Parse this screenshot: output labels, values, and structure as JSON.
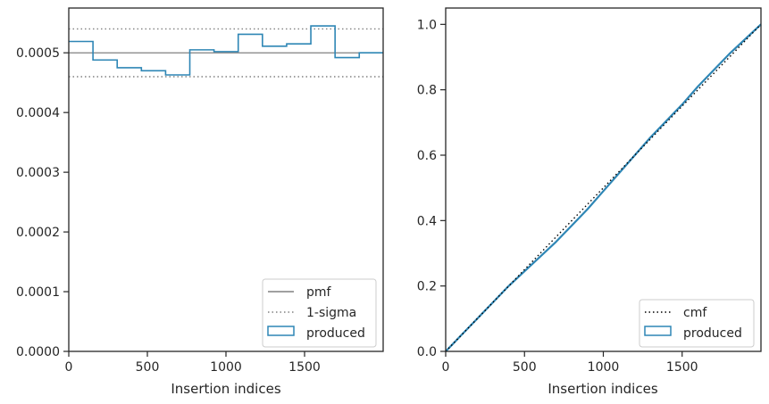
{
  "colors": {
    "produced": "#2e86b5",
    "pmf": "#808080",
    "sigma": "#808080",
    "cmf": "#000000",
    "frame": "#262626",
    "legend_border": "#cccccc"
  },
  "chart_data": [
    {
      "type": "histogram",
      "xlabel": "Insertion indices",
      "ylabel": "",
      "xlim": [
        0,
        2000
      ],
      "ylim": [
        0,
        0.000575
      ],
      "xticks": [
        0,
        500,
        1000,
        1500
      ],
      "xtick_labels": [
        "0",
        "500",
        "1000",
        "1500"
      ],
      "yticks": [
        0,
        0.0001,
        0.0002,
        0.0003,
        0.0004,
        0.0005
      ],
      "ytick_labels": [
        "0.0000",
        "0.0001",
        "0.0002",
        "0.0003",
        "0.0004",
        "0.0005"
      ],
      "pmf": 0.0005,
      "sigma": [
        0.00046,
        0.00054
      ],
      "bin_edges": [
        0,
        154,
        308,
        462,
        616,
        770,
        924,
        1078,
        1232,
        1386,
        1540,
        1694,
        1848,
        2000
      ],
      "values": [
        0.000519,
        0.000488,
        0.000475,
        0.00047,
        0.000463,
        0.000505,
        0.000502,
        0.000531,
        0.000511,
        0.000515,
        0.000545,
        0.000492,
        0.0005
      ],
      "legend": {
        "position": "lower-right",
        "entries": [
          {
            "label": "pmf",
            "style": "line"
          },
          {
            "label": "1-sigma",
            "style": "dotted"
          },
          {
            "label": "produced",
            "style": "patch"
          }
        ]
      }
    },
    {
      "type": "line",
      "xlabel": "Insertion indices",
      "ylabel": "",
      "xlim": [
        0,
        2000
      ],
      "ylim": [
        0,
        1.05
      ],
      "xticks": [
        0,
        500,
        1000,
        1500
      ],
      "xtick_labels": [
        "0",
        "500",
        "1000",
        "1500"
      ],
      "yticks": [
        0,
        0.2,
        0.4,
        0.6,
        0.8,
        1.0
      ],
      "ytick_labels": [
        "0.0",
        "0.2",
        "0.4",
        "0.6",
        "0.8",
        "1.0"
      ],
      "cmf": {
        "x": [
          0,
          2000
        ],
        "y": [
          0,
          1.0
        ]
      },
      "produced": {
        "x": [
          0,
          100,
          200,
          300,
          400,
          500,
          600,
          700,
          800,
          900,
          1000,
          1100,
          1200,
          1300,
          1400,
          1500,
          1600,
          1700,
          1800,
          1900,
          2000
        ],
        "y": [
          0,
          0.05,
          0.1,
          0.15,
          0.2,
          0.245,
          0.29,
          0.335,
          0.385,
          0.435,
          0.49,
          0.545,
          0.6,
          0.655,
          0.705,
          0.755,
          0.81,
          0.86,
          0.91,
          0.955,
          1.0
        ]
      },
      "legend": {
        "position": "lower-right",
        "entries": [
          {
            "label": "cmf",
            "style": "dotted"
          },
          {
            "label": "produced",
            "style": "patch"
          }
        ]
      }
    }
  ]
}
